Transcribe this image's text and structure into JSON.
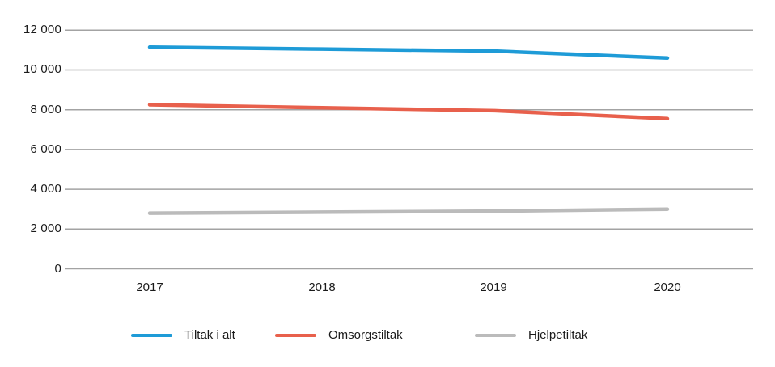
{
  "chart_data": {
    "type": "line",
    "categories": [
      "2017",
      "2018",
      "2019",
      "2020"
    ],
    "series": [
      {
        "name": "Tiltak i alt",
        "color": "#1e9bd7",
        "values": [
          11150,
          11050,
          10950,
          10600
        ]
      },
      {
        "name": "Omsorgstiltak",
        "color": "#e8604c",
        "values": [
          8250,
          8100,
          7950,
          7550
        ]
      },
      {
        "name": "Hjelpetiltak",
        "color": "#bbbbbb",
        "values": [
          2800,
          2850,
          2900,
          3000
        ]
      }
    ],
    "title": "",
    "xlabel": "",
    "ylabel": "",
    "ylim": [
      0,
      12000
    ],
    "ytick_interval": 2000,
    "yticks_top_to_bottom": [
      "12 000",
      "10 000",
      "8 000",
      "6 000",
      "4 000",
      "2 000",
      "0"
    ],
    "grid": true,
    "gridline_color": "#a3a3a3",
    "axis_text_color": "#1a1a1a",
    "background_color": "#ffffff",
    "legend_position": "bottom"
  }
}
